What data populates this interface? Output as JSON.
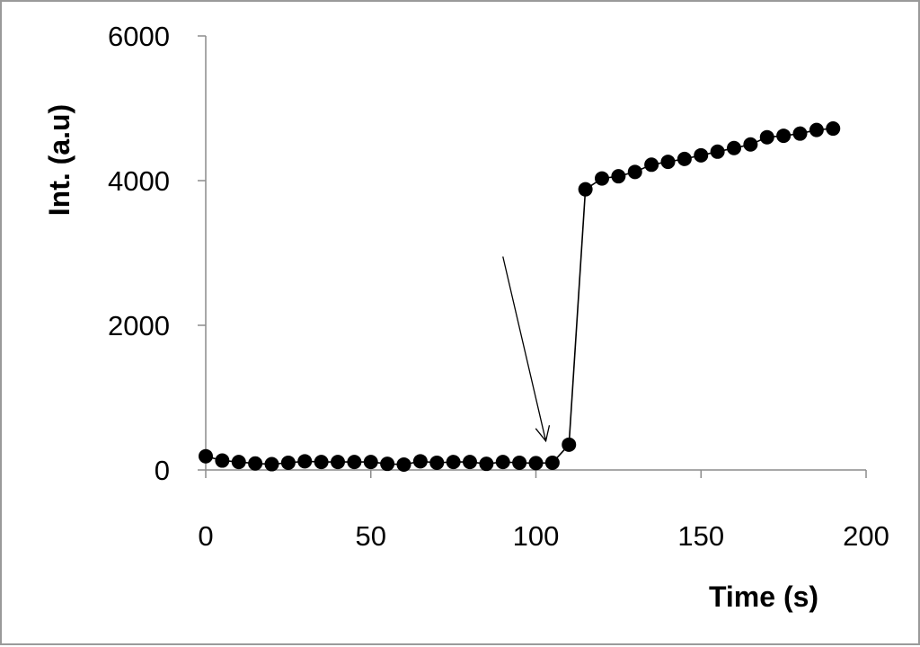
{
  "chart_data": {
    "type": "scatter",
    "title": "",
    "xlabel": "Time (s)",
    "ylabel": "Int. (a.u)",
    "xlim": [
      0,
      200
    ],
    "ylim": [
      0,
      6000
    ],
    "x_ticks": [
      0,
      50,
      100,
      150,
      200
    ],
    "y_ticks": [
      0,
      2000,
      4000,
      6000
    ],
    "grid": false,
    "legend": "none",
    "colors": {
      "marker": "#000000",
      "line": "#000000",
      "axis": "#8c8c8c"
    },
    "series": [
      {
        "connected": true,
        "x": [
          0,
          5,
          10,
          15,
          20,
          25,
          30,
          35,
          40,
          45,
          50,
          55,
          60,
          65,
          70,
          75,
          80,
          85,
          90,
          95,
          100,
          105,
          110,
          115,
          120,
          125,
          130,
          135,
          140,
          145,
          150,
          155,
          160,
          165,
          170,
          175,
          180,
          185,
          190
        ],
        "y": [
          190,
          130,
          110,
          90,
          80,
          100,
          120,
          110,
          110,
          110,
          110,
          85,
          75,
          120,
          100,
          110,
          110,
          85,
          110,
          100,
          95,
          100,
          350,
          3880,
          4030,
          4060,
          4120,
          4220,
          4260,
          4300,
          4350,
          4400,
          4450,
          4500,
          4600,
          4620,
          4650,
          4700,
          4720
        ]
      }
    ],
    "annotations": [
      {
        "type": "arrow",
        "from": [
          90,
          2950
        ],
        "to": [
          103,
          400
        ]
      }
    ]
  }
}
